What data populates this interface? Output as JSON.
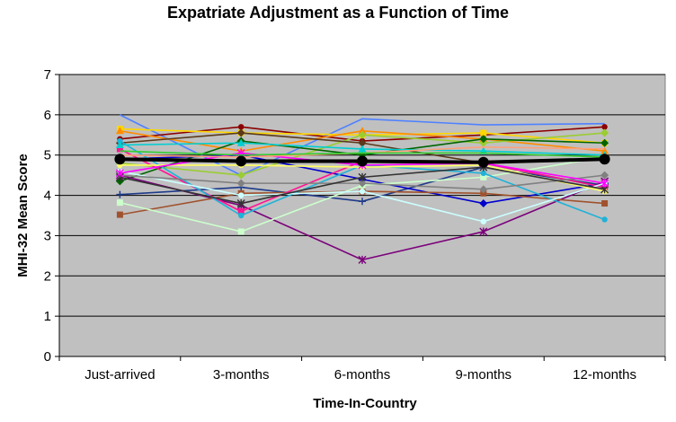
{
  "chart_data": {
    "type": "line",
    "title": "Expatriate Adjustment as a Function of Time",
    "xlabel": "Time-In-Country",
    "ylabel": "MHI-32 Mean Score",
    "categories": [
      "Just-arrived",
      "3-months",
      "6-months",
      "9-months",
      "12-months"
    ],
    "ylim": [
      0,
      7
    ],
    "yticks": [
      0,
      1,
      2,
      3,
      4,
      5,
      6,
      7
    ],
    "grid": "horizontal",
    "legend": "none",
    "plot_background": "#C0C0C0",
    "series": [
      {
        "color": "#000000",
        "marker": "circle",
        "bold": true,
        "values": [
          4.9,
          4.85,
          4.85,
          4.82,
          4.9
        ]
      },
      {
        "color": "#4F81FF",
        "marker": "none",
        "values": [
          6.0,
          4.5,
          5.9,
          5.75,
          5.78
        ]
      },
      {
        "color": "#8B0000",
        "marker": "circle",
        "values": [
          5.4,
          5.7,
          5.35,
          5.5,
          5.7
        ]
      },
      {
        "color": "#FFD700",
        "marker": "square",
        "values": [
          5.65,
          5.55,
          5.5,
          5.55,
          5.3
        ]
      },
      {
        "color": "#FF8C00",
        "marker": "triangle",
        "values": [
          5.6,
          5.1,
          5.6,
          5.4,
          5.1
        ]
      },
      {
        "color": "#9ACD32",
        "marker": "diamond",
        "values": [
          4.8,
          4.5,
          5.5,
          5.3,
          5.55
        ]
      },
      {
        "color": "#006400",
        "marker": "diamond",
        "values": [
          4.35,
          5.35,
          5.0,
          5.4,
          5.3
        ]
      },
      {
        "color": "#5A3A1A",
        "marker": "diamond",
        "values": [
          5.3,
          5.55,
          5.3,
          4.8,
          4.2
        ]
      },
      {
        "color": "#1E3A8A",
        "marker": "plus",
        "values": [
          4.02,
          4.2,
          3.85,
          4.7,
          4.25
        ]
      },
      {
        "color": "#0000CD",
        "marker": "diamond",
        "values": [
          4.9,
          5.0,
          4.4,
          3.8,
          4.3
        ]
      },
      {
        "color": "#7B007B",
        "marker": "star",
        "values": [
          4.5,
          3.75,
          2.4,
          3.1,
          4.35
        ]
      },
      {
        "color": "#A0522D",
        "marker": "square",
        "values": [
          3.52,
          4.05,
          4.1,
          4.05,
          3.8
        ]
      },
      {
        "color": "#CCFFCC",
        "marker": "square",
        "values": [
          3.82,
          3.1,
          4.25,
          4.45,
          4.95
        ]
      },
      {
        "color": "#FF1493",
        "marker": "square",
        "values": [
          5.15,
          3.6,
          4.85,
          4.8,
          4.2
        ]
      },
      {
        "color": "#20B2D8",
        "marker": "circle",
        "values": [
          5.35,
          3.5,
          4.75,
          4.55,
          3.4
        ]
      },
      {
        "color": "#CCFFFF",
        "marker": "circle",
        "values": [
          4.6,
          4.0,
          4.1,
          3.35,
          4.3
        ]
      },
      {
        "color": "#FFFF66",
        "marker": "circle",
        "values": [
          4.75,
          4.75,
          4.7,
          4.75,
          4.1
        ]
      },
      {
        "color": "#808080",
        "marker": "diamond",
        "values": [
          4.5,
          4.3,
          4.3,
          4.15,
          4.5
        ]
      },
      {
        "color": "#333333",
        "marker": "star",
        "values": [
          4.45,
          3.8,
          4.45,
          4.7,
          4.15
        ]
      },
      {
        "color": "#00CED1",
        "marker": "triangle",
        "values": [
          5.25,
          5.3,
          5.15,
          5.1,
          5.0
        ]
      },
      {
        "color": "#FF00FF",
        "marker": "star",
        "values": [
          4.55,
          5.05,
          4.75,
          4.8,
          4.3
        ]
      },
      {
        "color": "#FFA07A",
        "marker": "none",
        "values": [
          5.0,
          4.95,
          5.05,
          5.2,
          5.15
        ]
      },
      {
        "color": "#32CD32",
        "marker": "none",
        "values": [
          5.1,
          5.0,
          5.05,
          5.05,
          4.95
        ]
      }
    ]
  }
}
